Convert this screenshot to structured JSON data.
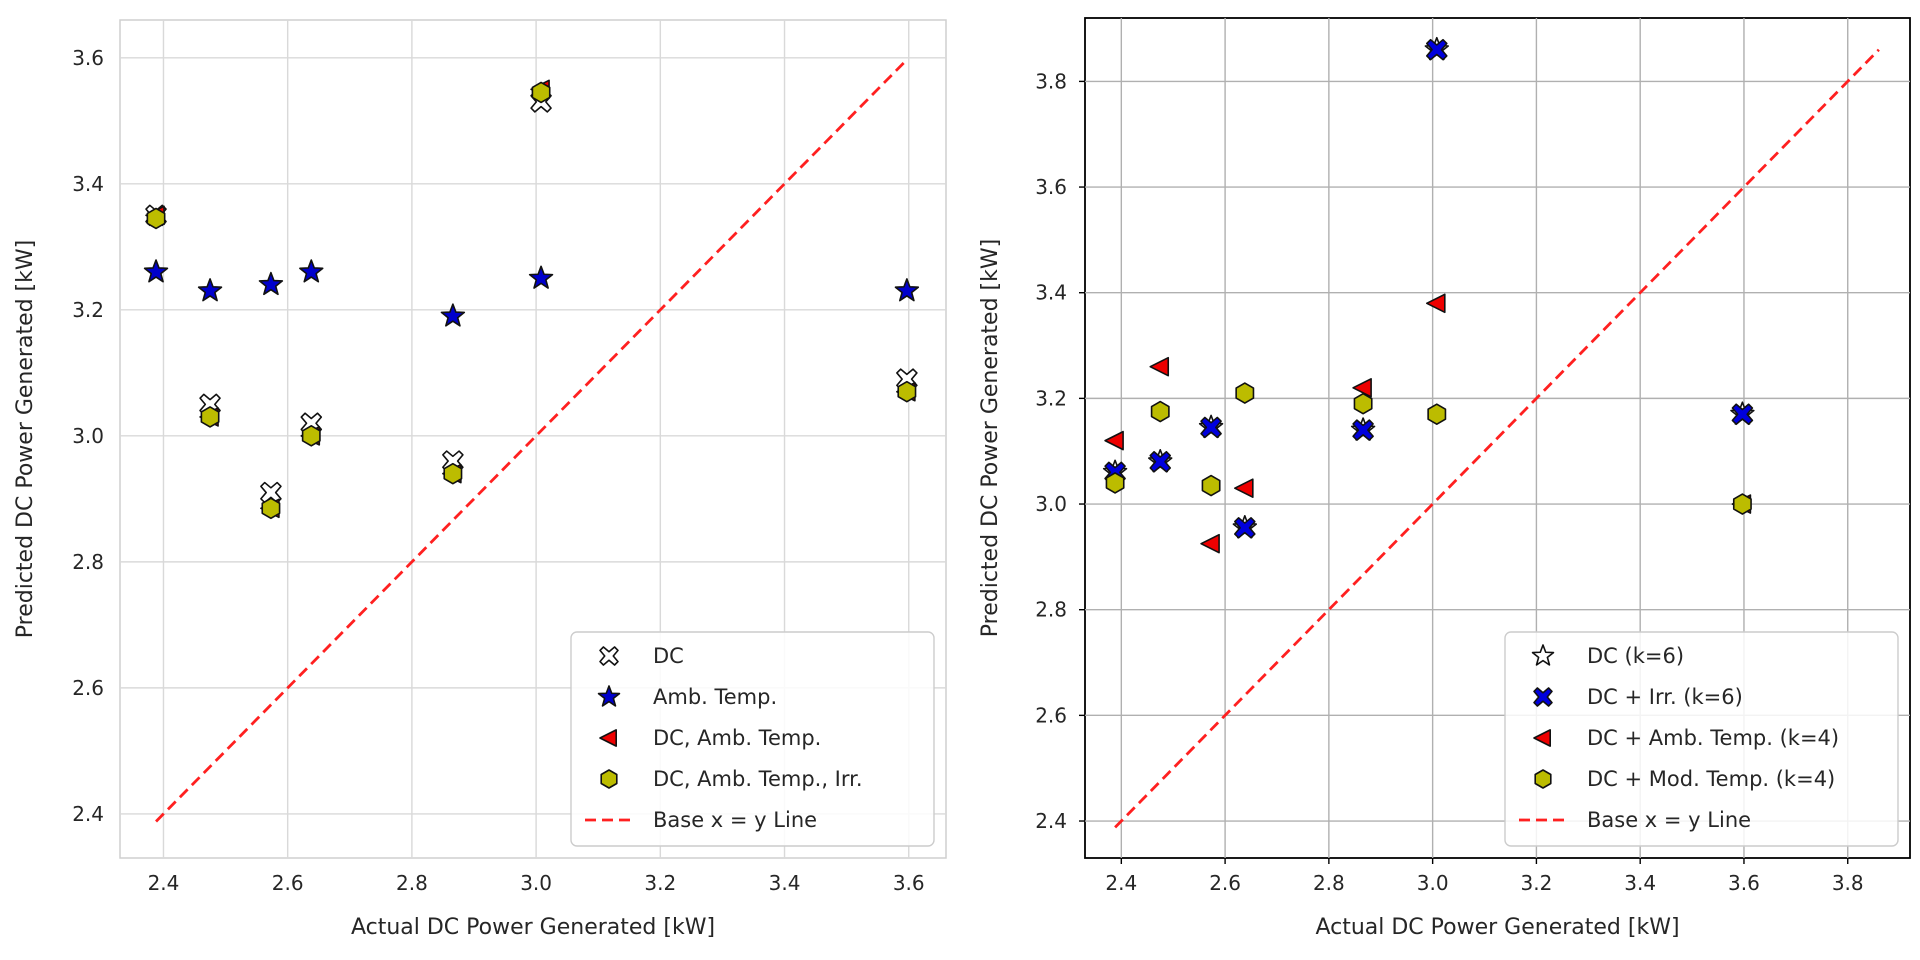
{
  "chart_data": [
    {
      "type": "scatter",
      "xlabel": "Actual DC Power Generated [kW]",
      "ylabel": "Predicted DC Power Generated [kW]",
      "xlim": [
        2.33,
        3.66
      ],
      "ylim": [
        2.33,
        3.66
      ],
      "xticks": [
        2.4,
        2.6,
        2.8,
        3.0,
        3.2,
        3.4,
        3.6
      ],
      "yticks": [
        2.4,
        2.6,
        2.8,
        3.0,
        3.2,
        3.4,
        3.6
      ],
      "tick_labels_x": [
        "2.4",
        "2.6",
        "2.8",
        "3.0",
        "3.2",
        "3.4",
        "3.6"
      ],
      "tick_labels_y": [
        "2.4",
        "2.6",
        "2.8",
        "3.0",
        "3.2",
        "3.4",
        "3.6"
      ],
      "grid": true,
      "style": "light-grid",
      "legend_position": "lower-right",
      "x": [
        2.388,
        2.475,
        2.573,
        2.638,
        2.866,
        3.008,
        3.597
      ],
      "series": [
        {
          "name": "DC",
          "marker": "X",
          "color": "#ffffff",
          "values": [
            3.35,
            3.05,
            2.91,
            3.02,
            2.96,
            3.53,
            3.09
          ]
        },
        {
          "name": "Amb. Temp.",
          "marker": "star",
          "color": "#0000cc",
          "values": [
            3.26,
            3.23,
            3.24,
            3.26,
            3.19,
            3.25,
            3.23
          ]
        },
        {
          "name": "DC, Amb. Temp.",
          "marker": "triangle-left",
          "color": "#ee0000",
          "values": [
            3.35,
            3.03,
            2.885,
            3.0,
            2.94,
            3.55,
            3.07
          ]
        },
        {
          "name": "DC, Amb. Temp., Irr.",
          "marker": "hexagon",
          "color": "#bcbc00",
          "values": [
            3.345,
            3.03,
            2.885,
            3.0,
            2.94,
            3.545,
            3.07
          ]
        }
      ],
      "reference_line": {
        "name": "Base x = y Line",
        "from": [
          2.388,
          2.388
        ],
        "to": [
          3.597,
          3.597
        ],
        "color": "#ff2020"
      }
    },
    {
      "type": "scatter",
      "xlabel": "Actual DC Power Generated [kW]",
      "ylabel": "Predicted DC Power Generated [kW]",
      "xlim": [
        2.33,
        3.92
      ],
      "ylim": [
        2.33,
        3.92
      ],
      "xticks": [
        2.4,
        2.6,
        2.8,
        3.0,
        3.2,
        3.4,
        3.6,
        3.8
      ],
      "yticks": [
        2.4,
        2.6,
        2.8,
        3.0,
        3.2,
        3.4,
        3.6,
        3.8
      ],
      "tick_labels_x": [
        "2.4",
        "2.6",
        "2.8",
        "3.0",
        "3.2",
        "3.4",
        "3.6",
        "3.8"
      ],
      "tick_labels_y": [
        "2.4",
        "2.6",
        "2.8",
        "3.0",
        "3.2",
        "3.4",
        "3.6",
        "3.8"
      ],
      "grid": true,
      "style": "dark-grid",
      "legend_position": "lower-right",
      "x": [
        2.388,
        2.475,
        2.573,
        2.638,
        2.866,
        3.008,
        3.597
      ],
      "series": [
        {
          "name": "DC (k=6)",
          "marker": "star",
          "color": "#ffffff",
          "values": [
            3.06,
            3.08,
            3.145,
            2.955,
            3.14,
            3.86,
            3.17
          ]
        },
        {
          "name": "DC + Irr. (k=6)",
          "marker": "X",
          "color": "#0000dd",
          "values": [
            3.06,
            3.08,
            3.145,
            2.955,
            3.14,
            3.86,
            3.17
          ]
        },
        {
          "name": "DC + Amb. Temp. (k=4)",
          "marker": "triangle-left",
          "color": "#ee0000",
          "values": [
            3.12,
            3.26,
            2.925,
            3.03,
            3.22,
            3.38,
            3.0
          ]
        },
        {
          "name": "DC + Mod. Temp. (k=4)",
          "marker": "hexagon",
          "color": "#bcbc00",
          "values": [
            3.04,
            3.175,
            3.035,
            3.21,
            3.19,
            3.17,
            3.0
          ]
        }
      ],
      "reference_line": {
        "name": "Base x = y Line",
        "from": [
          2.388,
          2.388
        ],
        "to": [
          3.86,
          3.86
        ],
        "color": "#ff2020"
      }
    }
  ]
}
